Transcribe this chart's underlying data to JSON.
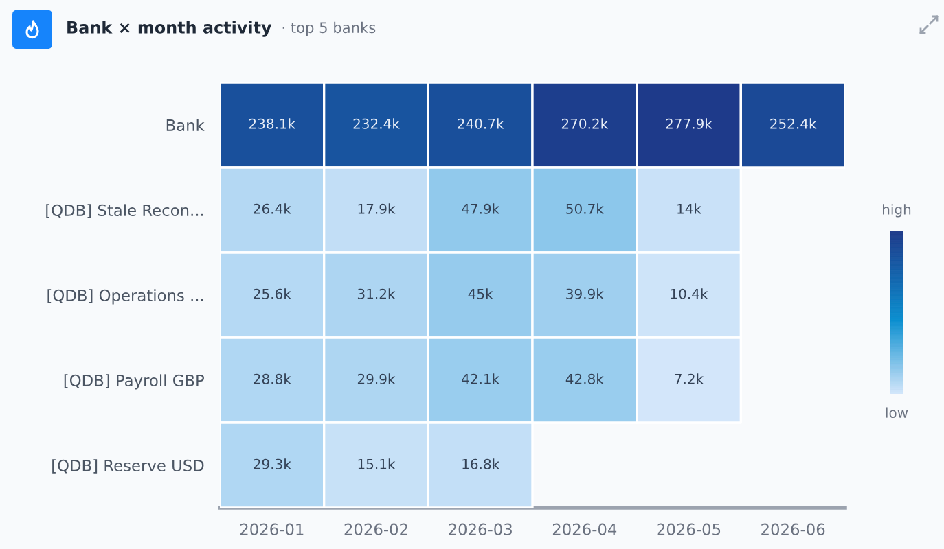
{
  "chart_data": {
    "type": "heatmap",
    "title": "Bank × month activity",
    "subtitle": "· top 5 banks",
    "categories": [
      "2026-01",
      "2026-02",
      "2026-03",
      "2026-04",
      "2026-05",
      "2026-06"
    ],
    "y_categories": [
      "Bank",
      "[QDB] Stale Recon...",
      "[QDB] Operations ...",
      "[QDB] Payroll GBP",
      "[QDB] Reserve USD"
    ],
    "cells": [
      [
        238100,
        232400,
        240700,
        270200,
        277900,
        252400
      ],
      [
        26400,
        17900,
        47900,
        50700,
        14000,
        null
      ],
      [
        25600,
        31200,
        45000,
        39900,
        10400,
        null
      ],
      [
        28800,
        29900,
        42100,
        42800,
        7200,
        null
      ],
      [
        29300,
        15100,
        16800,
        null,
        null,
        null
      ]
    ],
    "cell_labels": [
      [
        "238.1k",
        "232.4k",
        "240.7k",
        "270.2k",
        "277.9k",
        "252.4k"
      ],
      [
        "26.4k",
        "17.9k",
        "47.9k",
        "50.7k",
        "14k",
        null
      ],
      [
        "25.6k",
        "31.2k",
        "45k",
        "39.9k",
        "10.4k",
        null
      ],
      [
        "28.8k",
        "29.9k",
        "42.1k",
        "42.8k",
        "7.2k",
        null
      ],
      [
        "29.3k",
        "15.1k",
        "16.8k",
        null,
        null,
        null
      ]
    ],
    "annotations": [
      "high",
      "low"
    ]
  }
}
